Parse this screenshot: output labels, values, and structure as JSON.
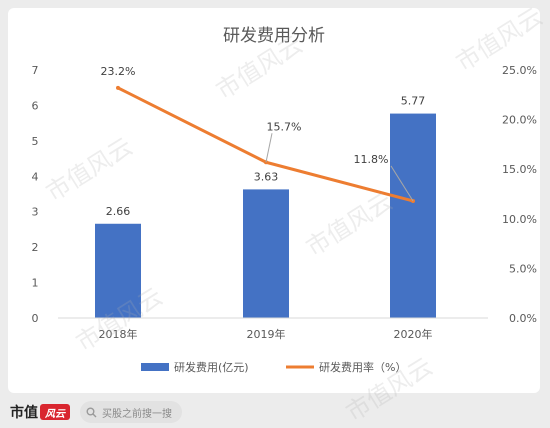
{
  "chart_data": {
    "type": "bar",
    "title": "研发费用分析",
    "categories": [
      "2018年",
      "2019年",
      "2020年"
    ],
    "series": [
      {
        "name": "研发费用(亿元)",
        "type": "bar",
        "axis": "left",
        "values": [
          2.66,
          3.63,
          5.77
        ],
        "labels": [
          "2.66",
          "3.63",
          "5.77"
        ],
        "color": "#4472c4"
      },
      {
        "name": "研发费用率（%）",
        "type": "line",
        "axis": "right",
        "values": [
          23.2,
          15.7,
          11.8
        ],
        "labels": [
          "23.2%",
          "15.7%",
          "11.8%"
        ],
        "color": "#ed7d31"
      }
    ],
    "y_left": {
      "min": 0,
      "max": 7,
      "ticks": [
        "0",
        "1",
        "2",
        "3",
        "4",
        "5",
        "6",
        "7"
      ]
    },
    "y_right": {
      "min": 0,
      "max": 25,
      "ticks": [
        "0.0%",
        "5.0%",
        "10.0%",
        "15.0%",
        "20.0%",
        "25.0%"
      ]
    },
    "grid": false,
    "legend_position": "bottom"
  },
  "watermark": "市值风云",
  "footer": {
    "brand": "市值",
    "brand_seal": "风云",
    "search_text": "买股之前搜一搜"
  }
}
